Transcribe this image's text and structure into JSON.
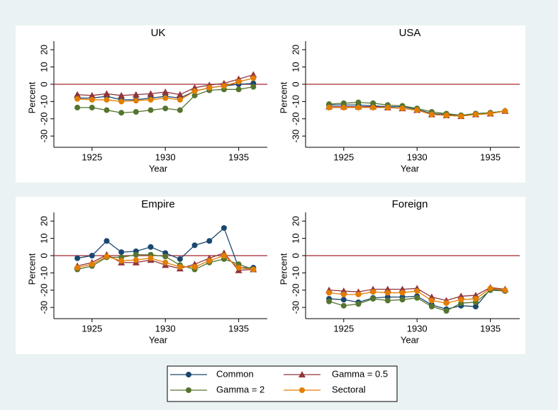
{
  "chart_data": [
    {
      "type": "line",
      "title": "UK",
      "x_label": "Year",
      "y_label": "Percent",
      "x": [
        1924,
        1925,
        1926,
        1927,
        1928,
        1929,
        1930,
        1931,
        1932,
        1933,
        1934,
        1935,
        1936
      ],
      "xlim": [
        1922.4,
        1937
      ],
      "ylim": [
        -36.5,
        25
      ],
      "xticks": [
        1925,
        1930,
        1935
      ],
      "yticks": [
        -30,
        -20,
        -10,
        0,
        10,
        20
      ],
      "hline": 0,
      "hline_color": "#a3262f",
      "series": [
        {
          "name": "Common",
          "color": "#1a476f",
          "marker": "circle",
          "values": [
            -8,
            -8,
            -7,
            -9,
            -9,
            -8,
            -7,
            -8,
            -4,
            -2,
            -1,
            0,
            0.5
          ]
        },
        {
          "name": "Gamma = 0.5",
          "color": "#90353b",
          "marker": "triangle",
          "values": [
            -6,
            -6.5,
            -5.5,
            -6.5,
            -6,
            -5.5,
            -4.5,
            -6,
            -2,
            -0.5,
            0.5,
            3,
            5.5
          ]
        },
        {
          "name": "Gamma = 2",
          "color": "#55752f",
          "marker": "circle",
          "values": [
            -13.5,
            -13.5,
            -15,
            -16.5,
            -16,
            -15,
            -14,
            -15,
            -6.5,
            -3.5,
            -3,
            -3,
            -1.5
          ]
        },
        {
          "name": "Sectoral",
          "color": "#e37e00",
          "marker": "circle",
          "values": [
            -8.5,
            -9,
            -9,
            -10,
            -9.5,
            -9,
            -8,
            -9,
            -4,
            -2,
            -1,
            1.5,
            3.5
          ]
        }
      ]
    },
    {
      "type": "line",
      "title": "USA",
      "x_label": "Year",
      "y_label": "Percent",
      "x": [
        1924,
        1925,
        1926,
        1927,
        1928,
        1929,
        1930,
        1931,
        1932,
        1933,
        1934,
        1935,
        1936
      ],
      "xlim": [
        1922.4,
        1937
      ],
      "ylim": [
        -36.5,
        25
      ],
      "xticks": [
        1925,
        1930,
        1935
      ],
      "yticks": [
        -30,
        -20,
        -10,
        0,
        10,
        20
      ],
      "hline": 0,
      "hline_color": "#a3262f",
      "series": [
        {
          "name": "Common",
          "color": "#1a476f",
          "marker": "circle",
          "values": [
            -12,
            -12,
            -12,
            -12.5,
            -13,
            -13,
            -14.5,
            -17,
            -17.5,
            -18,
            -17,
            -16.5,
            -15.5
          ]
        },
        {
          "name": "Gamma = 0.5",
          "color": "#90353b",
          "marker": "triangle",
          "values": [
            -13,
            -13,
            -13,
            -13,
            -13.5,
            -14,
            -15,
            -17.5,
            -18,
            -18.5,
            -17.5,
            -17,
            -15.5
          ]
        },
        {
          "name": "Gamma = 2",
          "color": "#55752f",
          "marker": "circle",
          "values": [
            -11.5,
            -11,
            -10.5,
            -11,
            -12,
            -12.5,
            -14,
            -16,
            -17,
            -18,
            -17,
            -16.5,
            -15.5
          ]
        },
        {
          "name": "Sectoral",
          "color": "#e37e00",
          "marker": "circle",
          "values": [
            -13.5,
            -13.5,
            -13.5,
            -13.5,
            -13.5,
            -14,
            -15,
            -17.5,
            -18,
            -18.5,
            -17.5,
            -17,
            -15.5
          ]
        }
      ]
    },
    {
      "type": "line",
      "title": "Empire",
      "x_label": "Year",
      "y_label": "Percent",
      "x": [
        1924,
        1925,
        1926,
        1927,
        1928,
        1929,
        1930,
        1931,
        1932,
        1933,
        1934,
        1935,
        1936
      ],
      "xlim": [
        1922.4,
        1937
      ],
      "ylim": [
        -36.5,
        25
      ],
      "xticks": [
        1925,
        1930,
        1935
      ],
      "yticks": [
        -30,
        -20,
        -10,
        0,
        10,
        20
      ],
      "hline": 0,
      "hline_color": "#a3262f",
      "series": [
        {
          "name": "Common",
          "color": "#1a476f",
          "marker": "circle",
          "values": [
            -1.5,
            0,
            8.5,
            2,
            2.5,
            5,
            1.5,
            -2,
            6,
            8.5,
            16,
            -7,
            -7
          ]
        },
        {
          "name": "Gamma = 0.5",
          "color": "#90353b",
          "marker": "triangle",
          "values": [
            -6,
            -4,
            0.5,
            -4,
            -4,
            -2.5,
            -5.5,
            -7.5,
            -5,
            -1.5,
            1.5,
            -8.5,
            -8
          ]
        },
        {
          "name": "Gamma = 2",
          "color": "#55752f",
          "marker": "circle",
          "values": [
            -8,
            -6,
            -1,
            -1,
            0.5,
            0.5,
            -0.5,
            -5.5,
            -8,
            -4,
            -2,
            -5,
            -8
          ]
        },
        {
          "name": "Sectoral",
          "color": "#e37e00",
          "marker": "circle",
          "values": [
            -7,
            -5,
            -0.5,
            -3,
            -2.5,
            -1.5,
            -4,
            -6.5,
            -6.5,
            -3,
            0,
            -7,
            -8
          ]
        }
      ]
    },
    {
      "type": "line",
      "title": "Foreign",
      "x_label": "Year",
      "y_label": "Percent",
      "x": [
        1924,
        1925,
        1926,
        1927,
        1928,
        1929,
        1930,
        1931,
        1932,
        1933,
        1934,
        1935,
        1936
      ],
      "xlim": [
        1922.4,
        1937
      ],
      "ylim": [
        -36.5,
        25
      ],
      "xticks": [
        1925,
        1930,
        1935
      ],
      "yticks": [
        -30,
        -20,
        -10,
        0,
        10,
        20
      ],
      "hline": 0,
      "hline_color": "#a3262f",
      "series": [
        {
          "name": "Common",
          "color": "#1a476f",
          "marker": "circle",
          "values": [
            -25,
            -25.5,
            -27,
            -24.5,
            -24,
            -24,
            -23.5,
            -28.5,
            -31,
            -29,
            -29.5,
            -19.5,
            -20.5
          ]
        },
        {
          "name": "Gamma = 0.5",
          "color": "#90353b",
          "marker": "triangle",
          "values": [
            -20,
            -20.5,
            -21,
            -19.5,
            -19.5,
            -19.5,
            -19,
            -24,
            -26,
            -23.5,
            -23,
            -18.5,
            -19.5
          ]
        },
        {
          "name": "Gamma = 2",
          "color": "#55752f",
          "marker": "circle",
          "values": [
            -26.5,
            -29,
            -28,
            -25,
            -26,
            -25.5,
            -24.5,
            -29.5,
            -32,
            -27.5,
            -27,
            -20,
            -20.5
          ]
        },
        {
          "name": "Sectoral",
          "color": "#e37e00",
          "marker": "circle",
          "values": [
            -21.5,
            -22.5,
            -22.5,
            -21,
            -21.5,
            -21.5,
            -20.5,
            -26,
            -27.5,
            -25.5,
            -25,
            -19,
            -20
          ]
        }
      ]
    }
  ]
}
